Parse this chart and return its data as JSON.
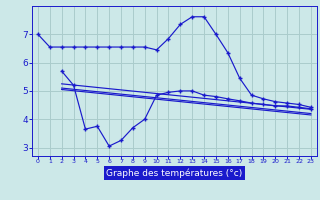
{
  "bg_color": "#cce8e8",
  "grid_color": "#aacccc",
  "line_color": "#1a1acc",
  "xlabel": "Graphe des températures (°c)",
  "xlabel_bg": "#1a1acc",
  "xlabel_color": "#ffffff",
  "ylim": [
    2.7,
    8.0
  ],
  "xlim": [
    -0.5,
    23.5
  ],
  "yticks": [
    3,
    4,
    5,
    6,
    7
  ],
  "xticks": [
    0,
    1,
    2,
    3,
    4,
    5,
    6,
    7,
    8,
    9,
    10,
    11,
    12,
    13,
    14,
    15,
    16,
    17,
    18,
    19,
    20,
    21,
    22,
    23
  ],
  "line1_x": [
    0,
    1,
    2,
    3,
    4,
    5,
    6,
    7,
    8,
    9,
    10,
    11,
    12,
    13,
    14,
    15,
    16,
    17,
    18,
    19,
    20,
    21,
    22,
    23
  ],
  "line1_y": [
    7.0,
    6.55,
    6.55,
    6.55,
    6.55,
    6.55,
    6.55,
    6.55,
    6.55,
    6.55,
    6.45,
    6.85,
    7.35,
    7.62,
    7.62,
    7.0,
    6.35,
    5.45,
    4.85,
    4.72,
    4.62,
    4.57,
    4.52,
    4.42
  ],
  "line2_x": [
    2,
    3,
    4,
    5,
    6,
    7,
    8,
    9,
    10,
    11,
    12,
    13,
    14,
    15,
    16,
    17,
    18,
    19,
    20,
    21,
    22,
    23
  ],
  "line2_y": [
    5.7,
    5.2,
    3.65,
    3.75,
    3.05,
    3.25,
    3.7,
    4.0,
    4.85,
    4.95,
    5.0,
    5.0,
    4.85,
    4.8,
    4.72,
    4.65,
    4.57,
    4.52,
    4.47,
    4.47,
    4.42,
    4.37
  ],
  "line3_x": [
    2,
    23
  ],
  "line3_y": [
    5.25,
    4.35
  ],
  "line4_x": [
    2,
    23
  ],
  "line4_y": [
    5.1,
    4.2
  ],
  "line5_x": [
    2,
    23
  ],
  "line5_y": [
    5.05,
    4.15
  ]
}
